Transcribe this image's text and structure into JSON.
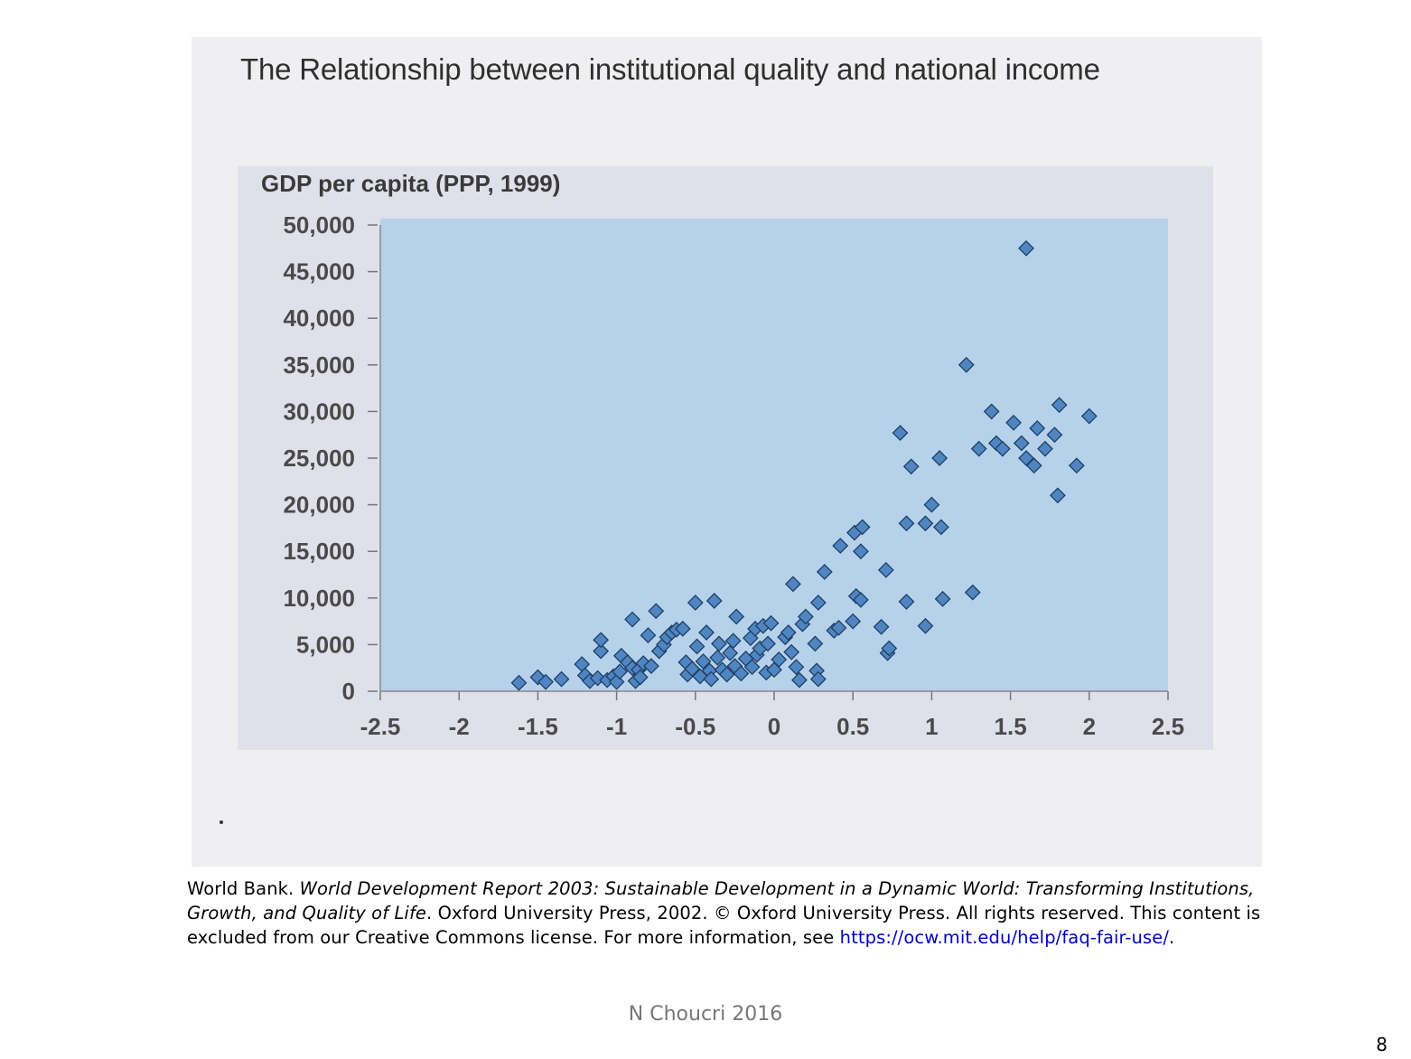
{
  "chart_data": {
    "type": "scatter",
    "title": "The Relationship between institutional quality and national income",
    "ylabel": "GDP per capita (PPP, 1999)",
    "xlabel": "",
    "xlim": [
      -2.5,
      2.5
    ],
    "ylim": [
      0,
      50000
    ],
    "xticks": [
      "-2.5",
      "-2",
      "-1.5",
      "-1",
      "-0.5",
      "0",
      "0.5",
      "1",
      "1.5",
      "2",
      "2.5"
    ],
    "yticks": [
      "0",
      "5,000",
      "10,000",
      "15,000",
      "20,000",
      "25,000",
      "30,000",
      "35,000",
      "40,000",
      "45,000",
      "50,000"
    ],
    "grid": false,
    "legend": "none",
    "marker_color": "#4f86c2",
    "plot_bg": "#b6d2ea",
    "points": [
      [
        -1.62,
        900
      ],
      [
        -1.5,
        1500
      ],
      [
        -1.45,
        1000
      ],
      [
        -1.35,
        1300
      ],
      [
        -1.22,
        2900
      ],
      [
        -1.2,
        1700
      ],
      [
        -1.17,
        1100
      ],
      [
        -1.12,
        1400
      ],
      [
        -1.1,
        4300
      ],
      [
        -1.1,
        5500
      ],
      [
        -1.06,
        1200
      ],
      [
        -1.02,
        1600
      ],
      [
        -1.0,
        1000
      ],
      [
        -0.98,
        2100
      ],
      [
        -0.97,
        3800
      ],
      [
        -0.93,
        3100
      ],
      [
        -0.9,
        7700
      ],
      [
        -0.9,
        2500
      ],
      [
        -0.88,
        1100
      ],
      [
        -0.86,
        2300
      ],
      [
        -0.85,
        1500
      ],
      [
        -0.83,
        3000
      ],
      [
        -0.8,
        6000
      ],
      [
        -0.78,
        2700
      ],
      [
        -0.75,
        8600
      ],
      [
        -0.73,
        4300
      ],
      [
        -0.7,
        5000
      ],
      [
        -0.68,
        5800
      ],
      [
        -0.65,
        6300
      ],
      [
        -0.62,
        6600
      ],
      [
        -0.58,
        6700
      ],
      [
        -0.56,
        3100
      ],
      [
        -0.55,
        1800
      ],
      [
        -0.52,
        2400
      ],
      [
        -0.5,
        9500
      ],
      [
        -0.49,
        4800
      ],
      [
        -0.47,
        1600
      ],
      [
        -0.45,
        3200
      ],
      [
        -0.43,
        6300
      ],
      [
        -0.41,
        2200
      ],
      [
        -0.4,
        1300
      ],
      [
        -0.38,
        9700
      ],
      [
        -0.36,
        3600
      ],
      [
        -0.35,
        5100
      ],
      [
        -0.33,
        2300
      ],
      [
        -0.3,
        1800
      ],
      [
        -0.28,
        4100
      ],
      [
        -0.26,
        5400
      ],
      [
        -0.25,
        2700
      ],
      [
        -0.24,
        8000
      ],
      [
        -0.21,
        1900
      ],
      [
        -0.18,
        3500
      ],
      [
        -0.15,
        5700
      ],
      [
        -0.14,
        2600
      ],
      [
        -0.12,
        6700
      ],
      [
        -0.11,
        3900
      ],
      [
        -0.09,
        4600
      ],
      [
        -0.07,
        7000
      ],
      [
        -0.05,
        2000
      ],
      [
        -0.04,
        5100
      ],
      [
        -0.02,
        7300
      ],
      [
        0.0,
        2300
      ],
      [
        0.03,
        3400
      ],
      [
        0.07,
        5800
      ],
      [
        0.09,
        6300
      ],
      [
        0.11,
        4200
      ],
      [
        0.12,
        11500
      ],
      [
        0.14,
        2600
      ],
      [
        0.16,
        1200
      ],
      [
        0.18,
        7200
      ],
      [
        0.2,
        8000
      ],
      [
        0.26,
        5100
      ],
      [
        0.27,
        2200
      ],
      [
        0.28,
        1300
      ],
      [
        0.28,
        9500
      ],
      [
        0.32,
        12800
      ],
      [
        0.38,
        6500
      ],
      [
        0.41,
        6800
      ],
      [
        0.42,
        15600
      ],
      [
        0.5,
        7500
      ],
      [
        0.51,
        17000
      ],
      [
        0.52,
        10200
      ],
      [
        0.55,
        9800
      ],
      [
        0.55,
        15000
      ],
      [
        0.56,
        17600
      ],
      [
        0.68,
        6900
      ],
      [
        0.71,
        13000
      ],
      [
        0.72,
        4100
      ],
      [
        0.73,
        4600
      ],
      [
        0.8,
        27700
      ],
      [
        0.84,
        18000
      ],
      [
        0.84,
        9600
      ],
      [
        0.87,
        24100
      ],
      [
        0.96,
        7000
      ],
      [
        0.96,
        18000
      ],
      [
        1.0,
        20000
      ],
      [
        1.05,
        25000
      ],
      [
        1.06,
        17600
      ],
      [
        1.07,
        9900
      ],
      [
        1.22,
        35000
      ],
      [
        1.26,
        10600
      ],
      [
        1.3,
        26000
      ],
      [
        1.38,
        30000
      ],
      [
        1.41,
        26600
      ],
      [
        1.45,
        26000
      ],
      [
        1.52,
        28800
      ],
      [
        1.57,
        26600
      ],
      [
        1.6,
        47500
      ],
      [
        1.6,
        25000
      ],
      [
        1.65,
        24200
      ],
      [
        1.67,
        28200
      ],
      [
        1.72,
        26000
      ],
      [
        1.78,
        27500
      ],
      [
        1.8,
        21000
      ],
      [
        1.81,
        30700
      ],
      [
        1.92,
        24200
      ],
      [
        2.0,
        29500
      ]
    ]
  },
  "caption": {
    "prefix": "World Bank. ",
    "italic": "World Development Report 2003: Sustainable Development in a Dynamic World: Transforming Institutions, Growth, and Quality of Life",
    "rest": ". Oxford University Press, 2002. © Oxford University Press. All rights reserved. This content is excluded from our Creative Commons license. For more information, see ",
    "link": "https://ocw.mit.edu/help/faq-fair-use/",
    "end": "."
  },
  "footer": "N Choucri 2016",
  "page_number": "8"
}
